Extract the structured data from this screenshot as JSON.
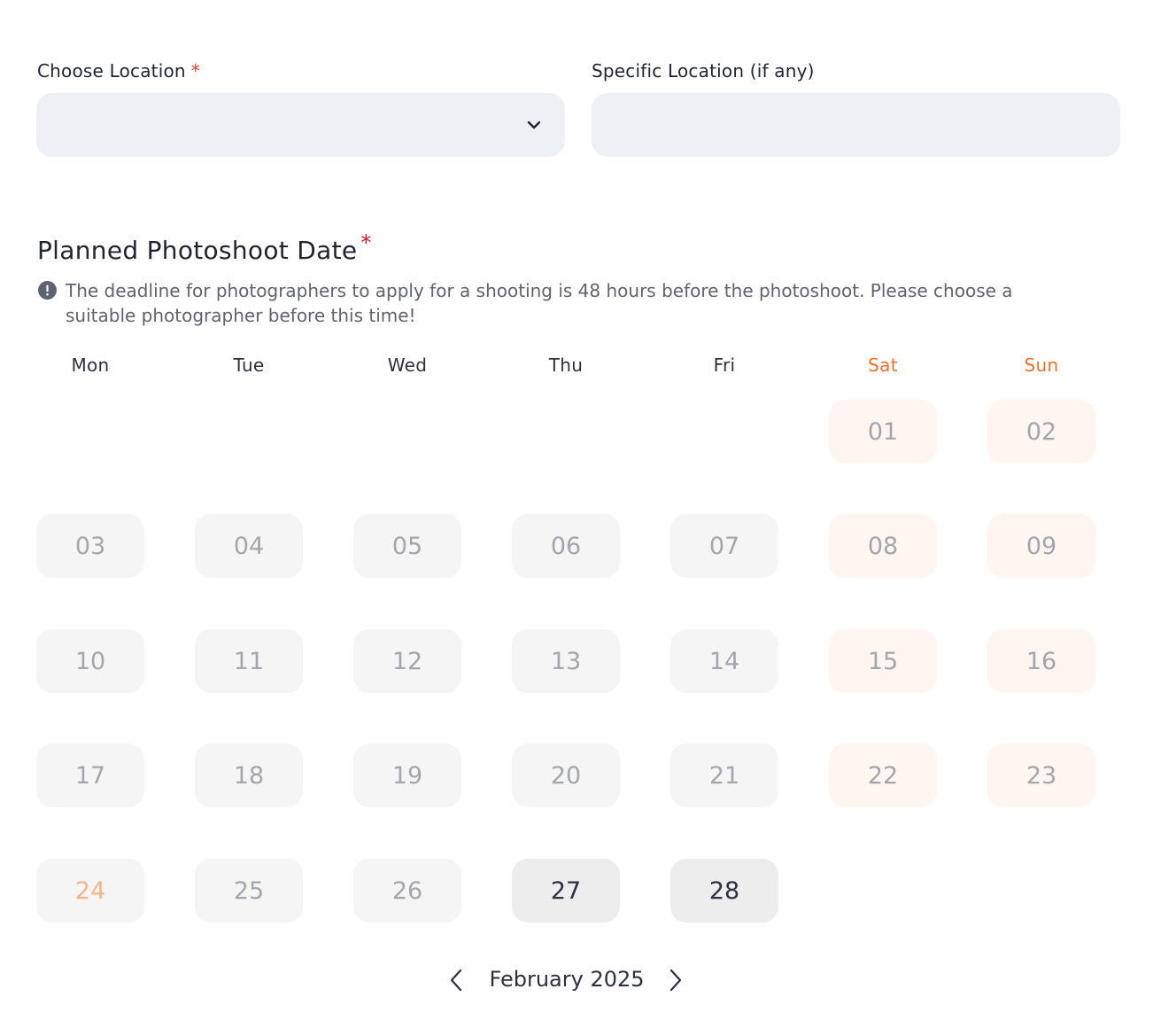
{
  "location": {
    "label": "Choose Location",
    "required_mark": "*",
    "value": ""
  },
  "specific_location": {
    "label": "Specific Location (if any)",
    "value": ""
  },
  "date_section": {
    "title": "Planned Photoshoot Date",
    "required_mark": "*",
    "info_text": "The deadline for photographers to apply for a shooting is 48 hours before the photoshoot. Please choose a suitable photographer before this time!"
  },
  "calendar": {
    "month_label": "February 2025",
    "weekdays": [
      "Mon",
      "Tue",
      "Wed",
      "Thu",
      "Fri",
      "Sat",
      "Sun"
    ],
    "weekend_color": "#f2702a",
    "days": [
      {
        "label": "01",
        "state": "disabled"
      },
      {
        "label": "02",
        "state": "disabled"
      },
      {
        "label": "03",
        "state": "disabled"
      },
      {
        "label": "04",
        "state": "disabled"
      },
      {
        "label": "05",
        "state": "disabled"
      },
      {
        "label": "06",
        "state": "disabled"
      },
      {
        "label": "07",
        "state": "disabled"
      },
      {
        "label": "08",
        "state": "disabled"
      },
      {
        "label": "09",
        "state": "disabled"
      },
      {
        "label": "10",
        "state": "disabled"
      },
      {
        "label": "11",
        "state": "disabled"
      },
      {
        "label": "12",
        "state": "disabled"
      },
      {
        "label": "13",
        "state": "disabled"
      },
      {
        "label": "14",
        "state": "disabled"
      },
      {
        "label": "15",
        "state": "disabled"
      },
      {
        "label": "16",
        "state": "disabled"
      },
      {
        "label": "17",
        "state": "disabled"
      },
      {
        "label": "18",
        "state": "disabled"
      },
      {
        "label": "19",
        "state": "disabled"
      },
      {
        "label": "20",
        "state": "disabled"
      },
      {
        "label": "21",
        "state": "disabled"
      },
      {
        "label": "22",
        "state": "disabled"
      },
      {
        "label": "23",
        "state": "disabled"
      },
      {
        "label": "24",
        "state": "today"
      },
      {
        "label": "25",
        "state": "disabled"
      },
      {
        "label": "26",
        "state": "disabled"
      },
      {
        "label": "27",
        "state": "available"
      },
      {
        "label": "28",
        "state": "available"
      }
    ],
    "prev_icon": "chevron-left-icon",
    "next_icon": "chevron-right-icon"
  }
}
